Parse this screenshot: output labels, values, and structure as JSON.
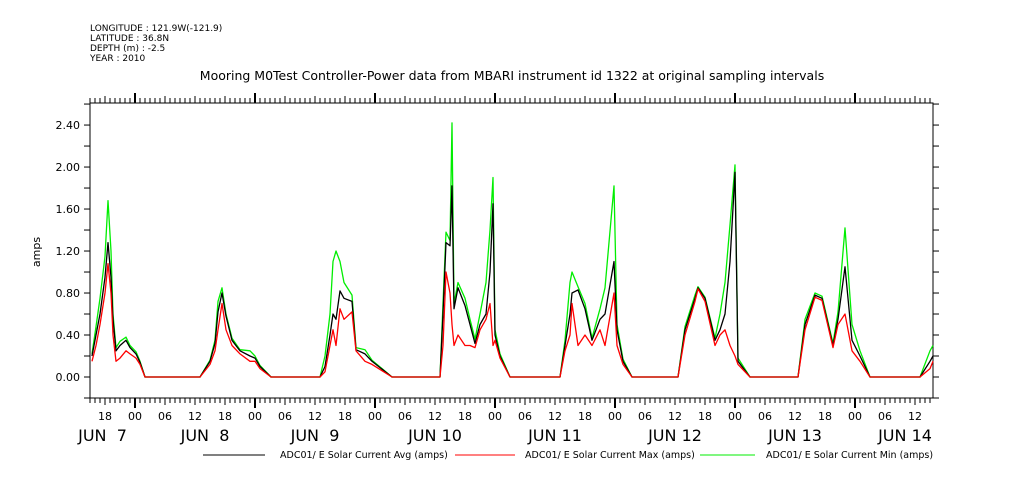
{
  "header": {
    "lines": [
      "LONGITUDE : 121.9W(-121.9)",
      "LATITUDE : 36.8N",
      "DEPTH (m) : -2.5",
      "YEAR : 2010"
    ]
  },
  "chart_data": {
    "type": "line",
    "title": "Mooring M0Test Controller-Power data from MBARI instrument id 1322 at original sampling intervals",
    "xlabel": "",
    "ylabel": "amps",
    "x_units": "hours since JUN 7 00:00",
    "xlim": [
      15,
      183.6
    ],
    "ylim": [
      -0.2,
      2.61
    ],
    "yticks": [
      "0.00",
      "0.40",
      "0.80",
      "1.20",
      "1.60",
      "2.00",
      "2.40"
    ],
    "hour_tick_labels": [
      "18",
      "00",
      "06",
      "12"
    ],
    "day_labels": [
      "JUN  7",
      "JUN  8",
      "JUN  9",
      "JUN 10",
      "JUN 11",
      "JUN 12",
      "JUN 13",
      "JUN 14"
    ],
    "grid": false,
    "legend_position": "bottom",
    "x": [
      15.4,
      16.2,
      17,
      18,
      18.6,
      19.2,
      19.6,
      20.2,
      21,
      22.2,
      23,
      24.2,
      25,
      26,
      37,
      39,
      40,
      40.6,
      41.4,
      42.2,
      43.4,
      45,
      47,
      48,
      49,
      51.2,
      61,
      62,
      63,
      63.6,
      64.2,
      65,
      65.8,
      67.4,
      68.2,
      70,
      71.4,
      75.4,
      85,
      85.6,
      86.2,
      87,
      87.4,
      87.8,
      88.6,
      90,
      91,
      92,
      93,
      94.2,
      95,
      95.6,
      96,
      97,
      99,
      109,
      110,
      111,
      111.4,
      112.6,
      114,
      115.4,
      117,
      118,
      119.8,
      120.4,
      121.6,
      123.4,
      132.6,
      134,
      136,
      136.6,
      138,
      140,
      141,
      142,
      143,
      144,
      144.6,
      147,
      156.6,
      158,
      160,
      161.4,
      163.6,
      164.6,
      166,
      167.4,
      169,
      171,
      181,
      183,
      183.6
    ],
    "series": [
      {
        "name": "ADC01/ E Solar Current Avg (amps)",
        "color": "#000000",
        "values": [
          0.2,
          0.4,
          0.6,
          0.95,
          1.28,
          0.95,
          0.55,
          0.25,
          0.3,
          0.35,
          0.28,
          0.22,
          0.14,
          0,
          0,
          0.15,
          0.32,
          0.62,
          0.8,
          0.58,
          0.35,
          0.25,
          0.2,
          0.18,
          0.1,
          0,
          0,
          0.1,
          0.4,
          0.6,
          0.55,
          0.82,
          0.75,
          0.72,
          0.26,
          0.22,
          0.15,
          0,
          0,
          0.6,
          1.28,
          1.25,
          1.82,
          0.65,
          0.85,
          0.68,
          0.5,
          0.32,
          0.5,
          0.6,
          1.0,
          1.65,
          0.4,
          0.2,
          0,
          0,
          0.3,
          0.6,
          0.8,
          0.83,
          0.65,
          0.35,
          0.55,
          0.6,
          1.1,
          0.45,
          0.15,
          0,
          0,
          0.45,
          0.75,
          0.85,
          0.75,
          0.35,
          0.45,
          0.6,
          1.1,
          1.95,
          0.15,
          0,
          0,
          0.5,
          0.78,
          0.75,
          0.3,
          0.55,
          1.05,
          0.35,
          0.2,
          0,
          0,
          0.15,
          0.2
        ]
      },
      {
        "name": "ADC01/ E Solar Current Max (amps)",
        "color": "#ff0000",
        "values": [
          0.15,
          0.3,
          0.5,
          0.8,
          1.08,
          0.8,
          0.4,
          0.15,
          0.18,
          0.25,
          0.22,
          0.18,
          0.12,
          0,
          0,
          0.12,
          0.25,
          0.45,
          0.7,
          0.45,
          0.3,
          0.22,
          0.15,
          0.15,
          0.08,
          0,
          0,
          0.05,
          0.3,
          0.45,
          0.3,
          0.65,
          0.55,
          0.62,
          0.25,
          0.15,
          0.12,
          0,
          0,
          0.3,
          1.0,
          0.8,
          0.5,
          0.3,
          0.4,
          0.3,
          0.3,
          0.28,
          0.45,
          0.55,
          0.7,
          0.3,
          0.35,
          0.18,
          0,
          0,
          0.25,
          0.4,
          0.7,
          0.3,
          0.4,
          0.3,
          0.45,
          0.3,
          0.8,
          0.3,
          0.12,
          0,
          0,
          0.4,
          0.72,
          0.84,
          0.72,
          0.3,
          0.4,
          0.45,
          0.3,
          0.2,
          0.12,
          0,
          0,
          0.45,
          0.76,
          0.73,
          0.28,
          0.5,
          0.6,
          0.25,
          0.15,
          0,
          0,
          0.08,
          0.15
        ]
      },
      {
        "name": "ADC01/ E Solar Current Min (amps)",
        "color": "#00ee00",
        "values": [
          0.22,
          0.48,
          0.75,
          1.15,
          1.68,
          1.2,
          0.6,
          0.28,
          0.34,
          0.38,
          0.3,
          0.24,
          0.15,
          0,
          0,
          0.16,
          0.35,
          0.72,
          0.85,
          0.6,
          0.37,
          0.26,
          0.25,
          0.2,
          0.11,
          0,
          0,
          0.2,
          0.6,
          1.1,
          1.2,
          1.1,
          0.9,
          0.78,
          0.28,
          0.26,
          0.16,
          0,
          0,
          0.7,
          1.38,
          1.3,
          2.42,
          0.7,
          0.9,
          0.75,
          0.55,
          0.36,
          0.6,
          0.9,
          1.4,
          1.9,
          0.45,
          0.22,
          0,
          0,
          0.35,
          0.9,
          1.0,
          0.86,
          0.7,
          0.37,
          0.65,
          0.85,
          1.82,
          0.5,
          0.17,
          0,
          0,
          0.48,
          0.78,
          0.86,
          0.76,
          0.37,
          0.6,
          0.9,
          1.45,
          2.02,
          0.18,
          0,
          0,
          0.55,
          0.8,
          0.77,
          0.32,
          0.62,
          1.42,
          0.5,
          0.25,
          0,
          0,
          0.25,
          0.3
        ]
      }
    ]
  }
}
